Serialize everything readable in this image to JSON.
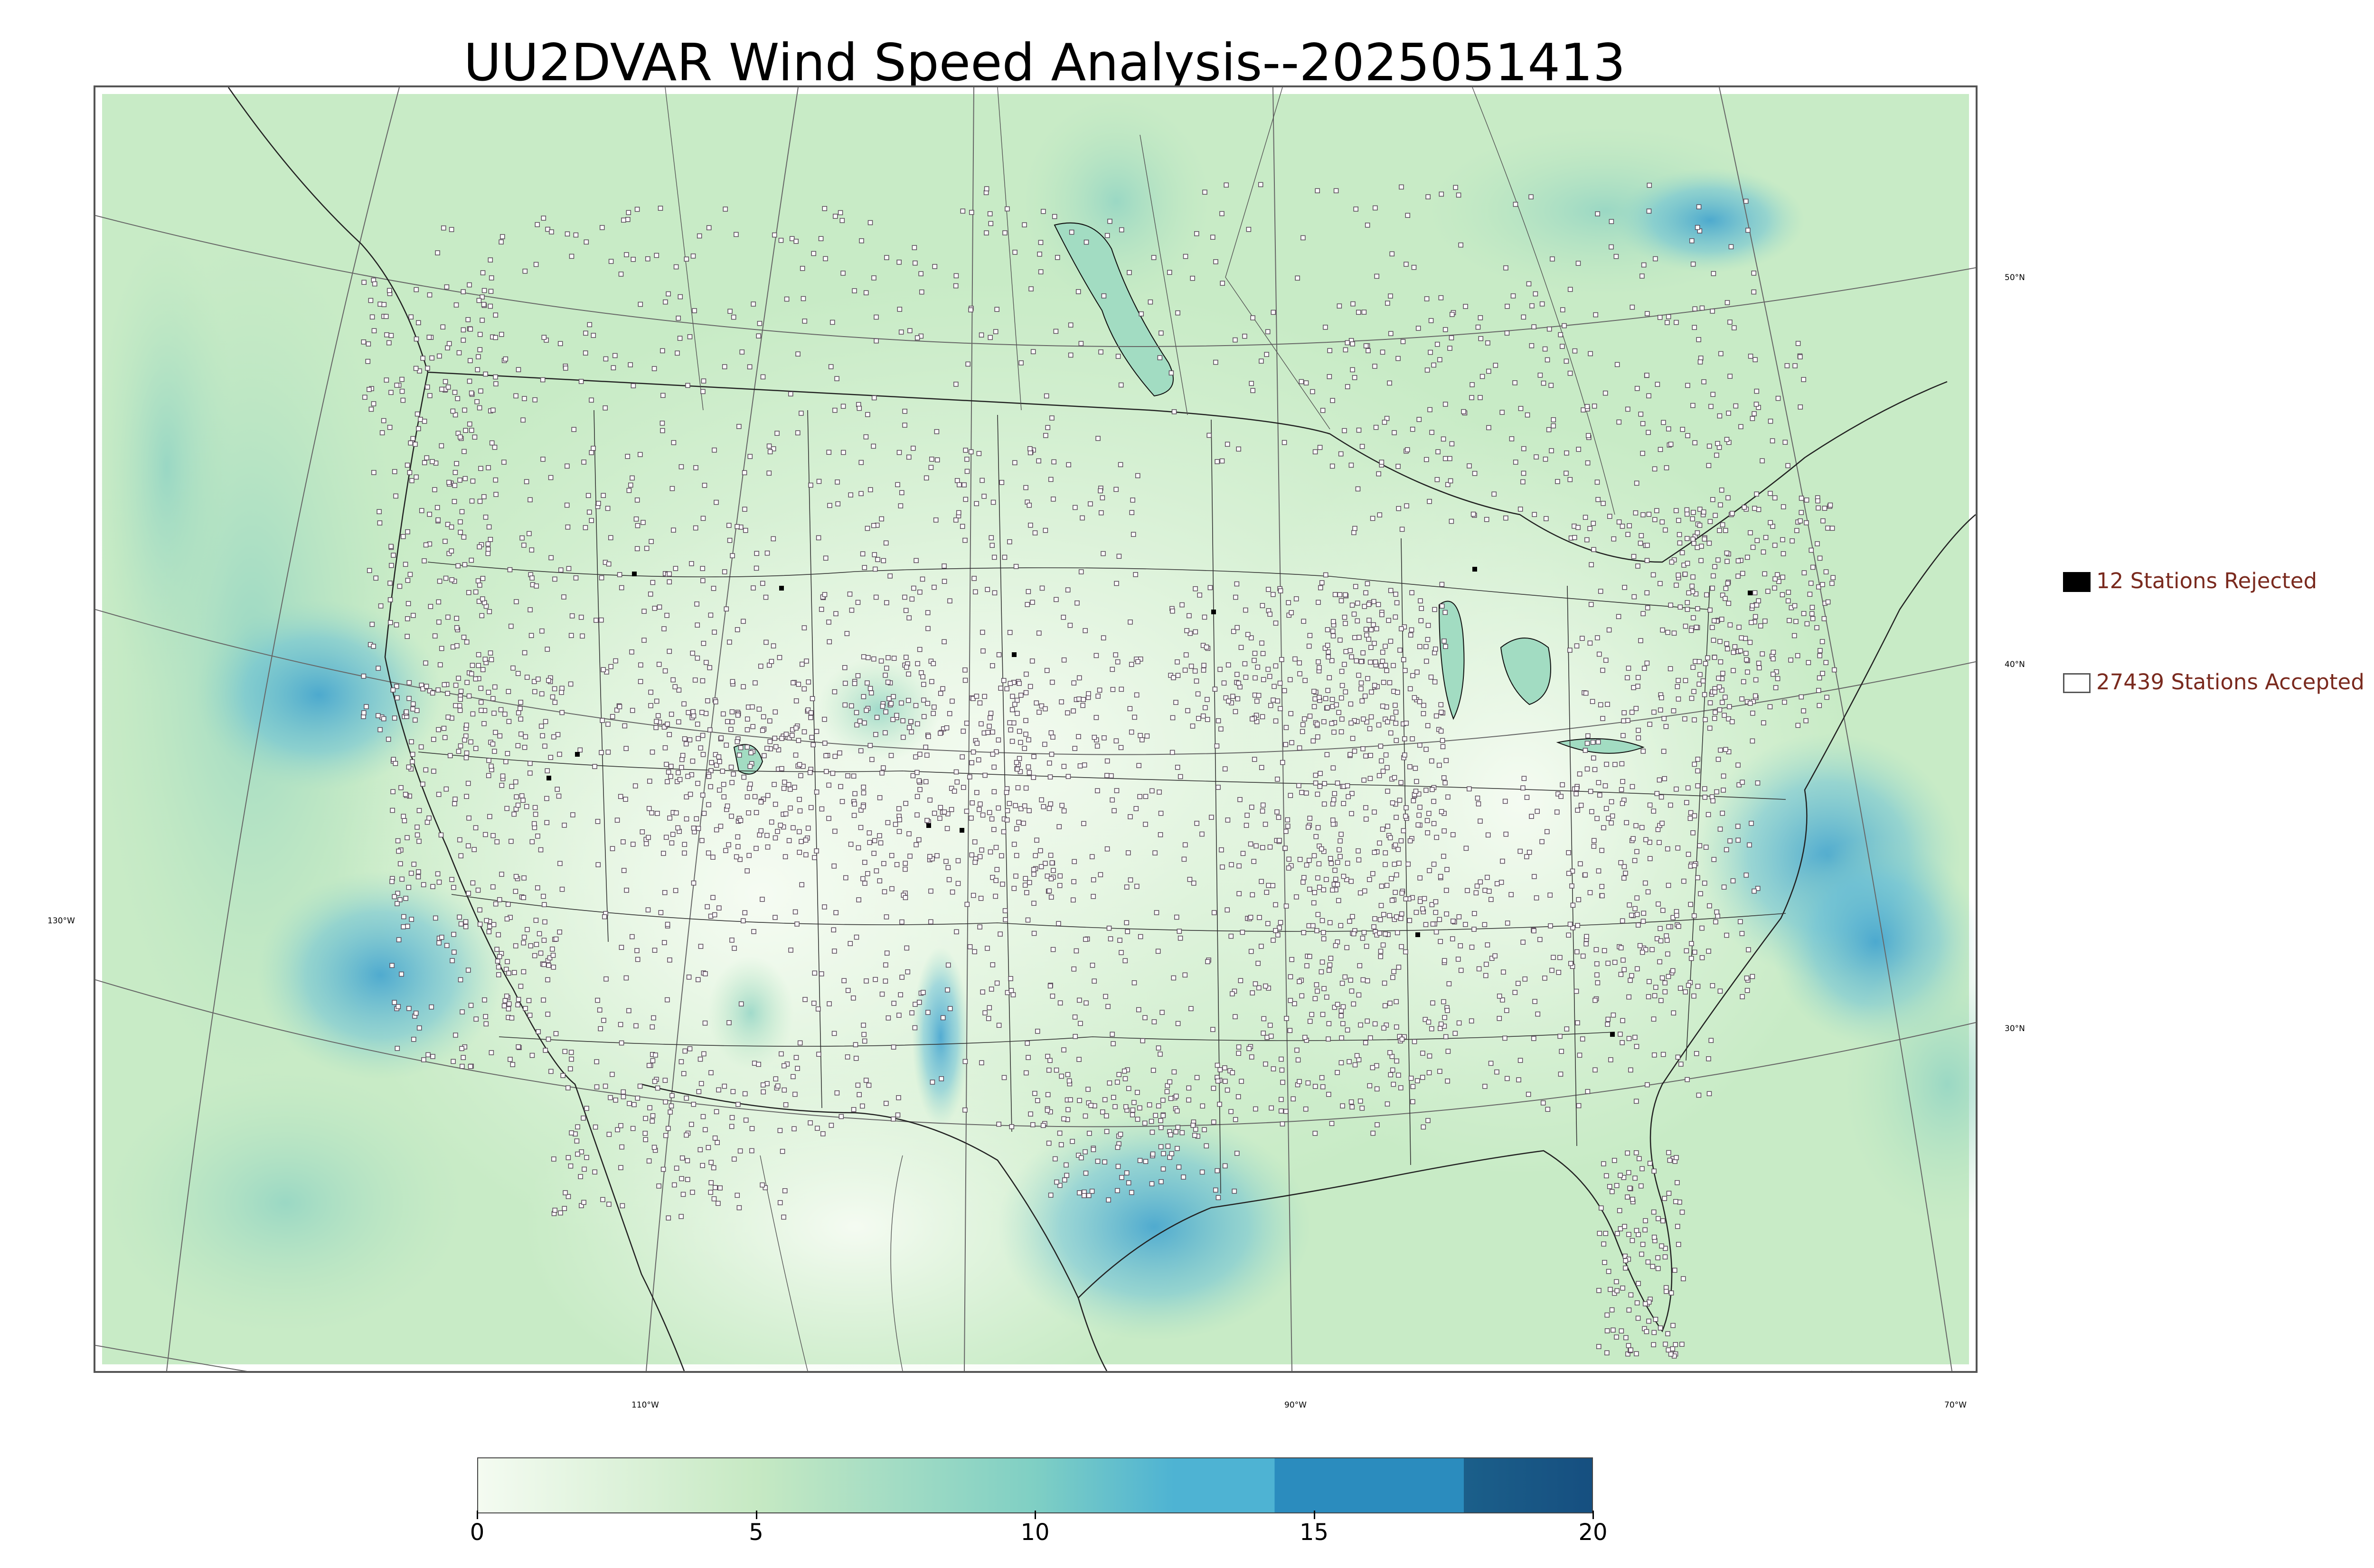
{
  "title": "UU2DVAR Wind Speed Analysis--2025051413",
  "map": {
    "projection": "lambert-conformal",
    "extent": "continental United States",
    "field": "wind speed",
    "basemap_features": [
      "coastlines",
      "country borders",
      "state borders",
      "county/province borders",
      "lakes",
      "graticule"
    ],
    "station_markers": {
      "accepted_marker": "small open square",
      "rejected_marker": "small filled square"
    },
    "latitude_labels": [
      "50°N",
      "40°N",
      "30°N"
    ],
    "longitude_labels": [
      "130°W",
      "110°W",
      "90°W",
      "70°W"
    ]
  },
  "legend": {
    "placement": "right",
    "rejected": {
      "label": "12 Stations Rejected",
      "swatch_color": "#000000"
    },
    "accepted": {
      "label": "27439 Stations Accepted",
      "swatch_color": "#ffffff"
    }
  },
  "colorbar": {
    "min": 0,
    "max": 20,
    "tick_labels": [
      "0",
      "5",
      "10",
      "15",
      "20"
    ],
    "colors": {
      "0": "#f4fbf1",
      "5": "#c6e9c3",
      "10": "#7fcfc4",
      "12.5": "#4eb3d3",
      "15": "#2b8cbe",
      "17.5": "#1b5f8a",
      "20": "#164f80"
    }
  }
}
